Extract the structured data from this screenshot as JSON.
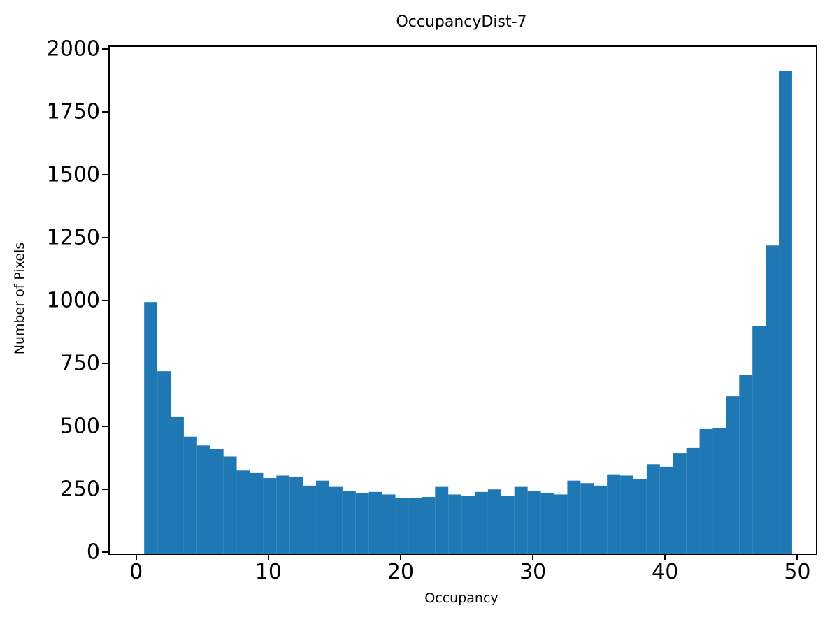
{
  "chart_data": {
    "type": "bar",
    "subtype": "histogram",
    "title": "OccupancyDist-7",
    "xlabel": "Occupancy",
    "ylabel": "Number of Pixels",
    "bin_start": 0.5,
    "bin_width": 1.0,
    "values": [
      1000,
      725,
      545,
      465,
      430,
      415,
      385,
      330,
      320,
      300,
      310,
      305,
      270,
      290,
      265,
      250,
      240,
      245,
      235,
      220,
      220,
      225,
      265,
      235,
      230,
      245,
      255,
      230,
      265,
      250,
      240,
      235,
      290,
      280,
      270,
      315,
      310,
      295,
      355,
      345,
      400,
      420,
      495,
      500,
      625,
      710,
      905,
      1225,
      1920
    ],
    "xticks": [
      0,
      10,
      20,
      30,
      40,
      50
    ],
    "yticks": [
      0,
      250,
      500,
      750,
      1000,
      1250,
      1500,
      1750,
      2000
    ],
    "xlim": [
      -2.1,
      51.3
    ],
    "ylim": [
      0,
      2015
    ],
    "bar_color": "#1f77b4",
    "grid": false,
    "legend": "none"
  }
}
